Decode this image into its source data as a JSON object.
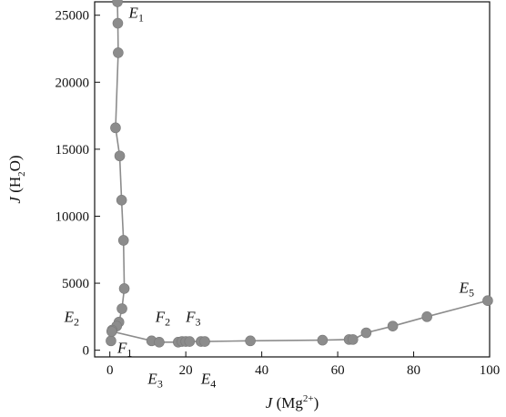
{
  "chart_data": {
    "type": "scatter",
    "title": "",
    "xlabel": "J (Mg2+)",
    "ylabel": "J (H2O)",
    "xlim": [
      -4,
      100
    ],
    "ylim": [
      -500,
      26000
    ],
    "xticks": [
      0,
      20,
      40,
      60,
      80,
      100
    ],
    "yticks": [
      0,
      5000,
      10000,
      15000,
      20000,
      25000
    ],
    "grid": false,
    "legend": "none",
    "marker_color": "#8c8c8c",
    "line_color": "#8c8c8c",
    "series": [
      {
        "values": [
          {
            "x": 2.0,
            "y": 26000
          },
          {
            "x": 2.1,
            "y": 24400
          },
          {
            "x": 2.2,
            "y": 22200
          },
          {
            "x": 1.5,
            "y": 16600
          },
          {
            "x": 2.6,
            "y": 14500
          },
          {
            "x": 3.1,
            "y": 11200
          },
          {
            "x": 3.6,
            "y": 8200
          },
          {
            "x": 3.8,
            "y": 4600
          },
          {
            "x": 3.2,
            "y": 3100
          },
          {
            "x": 2.4,
            "y": 2100
          },
          {
            "x": 1.8,
            "y": 1800
          },
          {
            "x": 0.6,
            "y": 1500
          },
          {
            "x": 0.3,
            "y": 700
          }
        ]
      },
      {
        "values": [
          {
            "x": 0.5,
            "y": 1400
          },
          {
            "x": 11,
            "y": 700
          },
          {
            "x": 13,
            "y": 600
          },
          {
            "x": 18,
            "y": 600
          },
          {
            "x": 19,
            "y": 650
          },
          {
            "x": 20,
            "y": 650
          },
          {
            "x": 21,
            "y": 650
          },
          {
            "x": 24,
            "y": 650
          },
          {
            "x": 25,
            "y": 650
          },
          {
            "x": 37,
            "y": 700
          },
          {
            "x": 56,
            "y": 750
          },
          {
            "x": 63,
            "y": 800
          },
          {
            "x": 64,
            "y": 800
          },
          {
            "x": 67.5,
            "y": 1300
          },
          {
            "x": 74.5,
            "y": 1800
          },
          {
            "x": 83.5,
            "y": 2500
          },
          {
            "x": 99.5,
            "y": 3700
          }
        ]
      }
    ],
    "annotations": [
      {
        "label": "E",
        "sub": "1",
        "x": 5,
        "y": 24800
      },
      {
        "label": "E",
        "sub": "2",
        "x": -12,
        "y": 2100
      },
      {
        "label": "F",
        "sub": "1",
        "x": 2,
        "y": -200
      },
      {
        "label": "F",
        "sub": "2",
        "x": 12,
        "y": 2100
      },
      {
        "label": "F",
        "sub": "3",
        "x": 20,
        "y": 2100
      },
      {
        "label": "E",
        "sub": "3",
        "x": 10,
        "y": -2500
      },
      {
        "label": "E",
        "sub": "4",
        "x": 24,
        "y": -2500
      },
      {
        "label": "E",
        "sub": "5",
        "x": 92,
        "y": 4300
      }
    ]
  }
}
